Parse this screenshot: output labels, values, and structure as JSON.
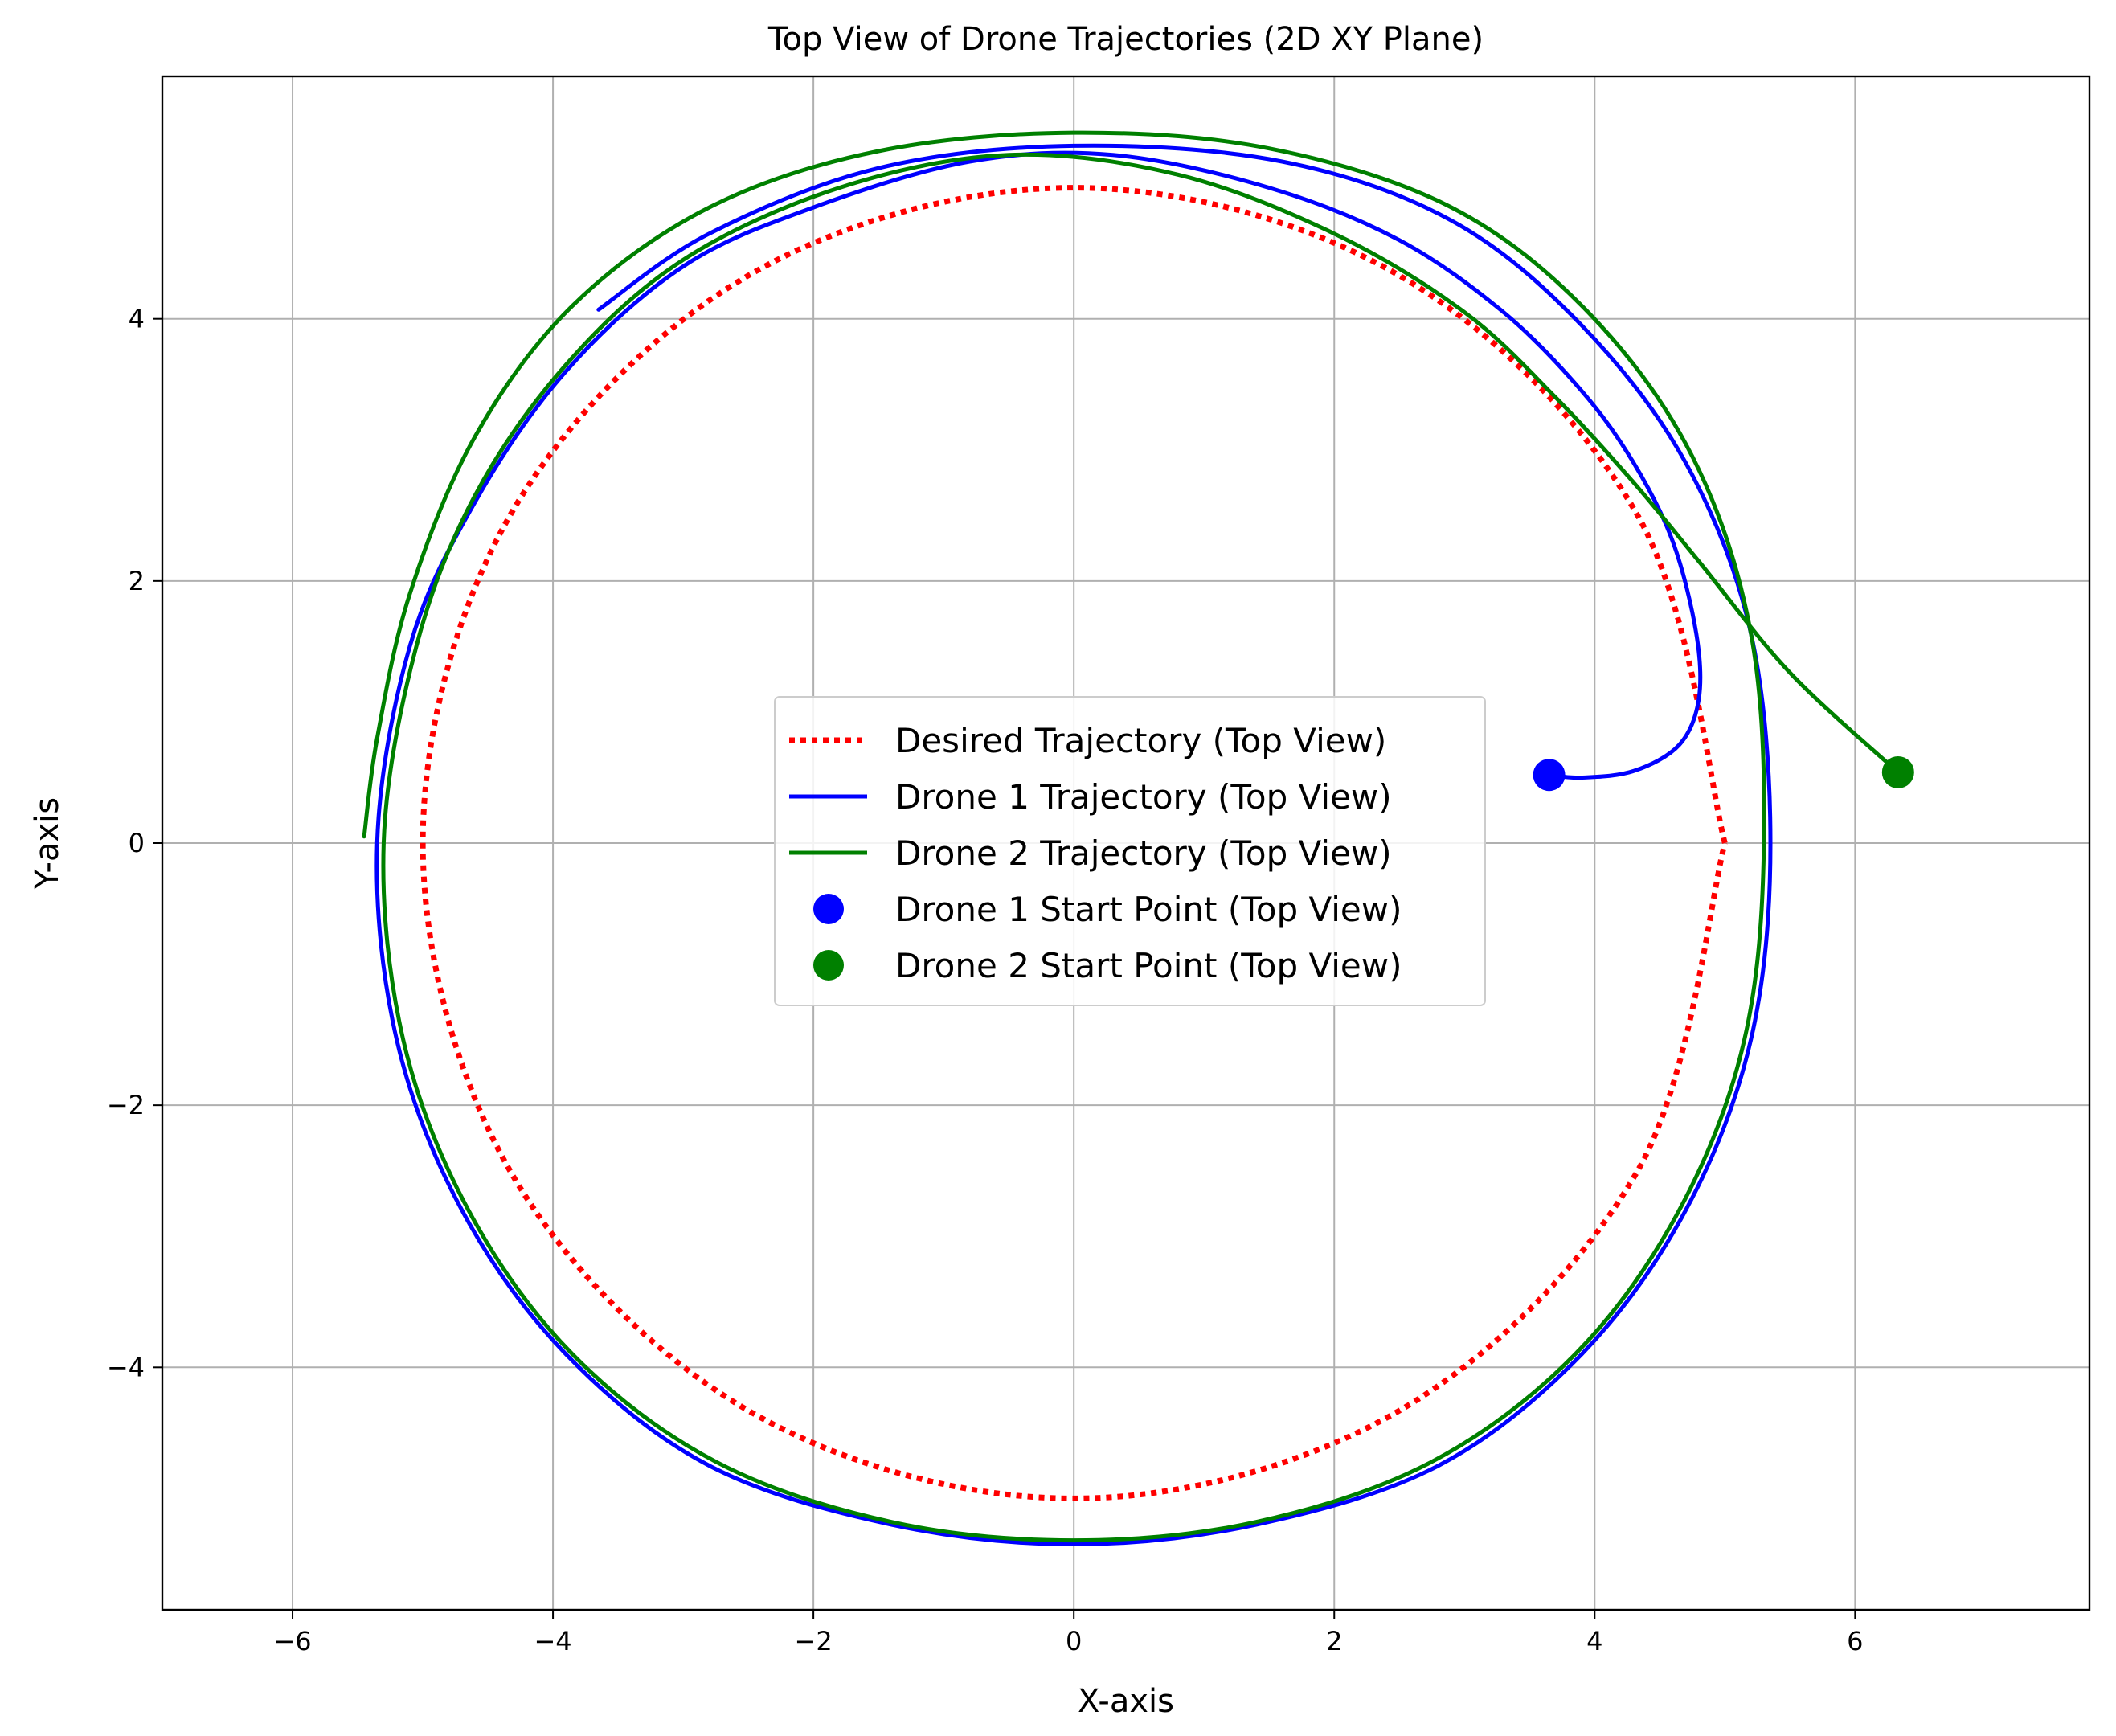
{
  "chart_data": {
    "type": "line",
    "title": "Top View of Drone Trajectories (2D XY Plane)",
    "xlabel": "X-axis",
    "ylabel": "Y-axis",
    "xlim": [
      -7,
      7.8
    ],
    "ylim": [
      -5.85,
      5.85
    ],
    "xticks": [
      -6,
      -4,
      -2,
      0,
      2,
      4,
      6
    ],
    "yticks": [
      -4,
      -2,
      0,
      2,
      4
    ],
    "xtick_labels": [
      "−6",
      "−4",
      "−2",
      "0",
      "2",
      "4",
      "6"
    ],
    "ytick_labels": [
      "−4",
      "−2",
      "0",
      "2",
      "4"
    ],
    "grid": true,
    "legend_position": "center",
    "series": [
      {
        "name": "Desired Trajectory (Top View)",
        "style": "dotted",
        "color": "#ff0000",
        "points": [
          [
            5.0,
            0.0
          ],
          [
            4.33,
            2.5
          ],
          [
            2.5,
            4.33
          ],
          [
            0.0,
            5.0
          ],
          [
            -2.5,
            4.33
          ],
          [
            -4.33,
            2.5
          ],
          [
            -5.0,
            0.0
          ],
          [
            -4.33,
            -2.5
          ],
          [
            -2.5,
            -4.33
          ],
          [
            0.0,
            -5.0
          ],
          [
            2.5,
            -4.33
          ],
          [
            4.33,
            -2.5
          ],
          [
            5.0,
            0.0
          ]
        ]
      },
      {
        "name": "Drone 1 Trajectory (Top View)",
        "style": "solid",
        "color": "#0000ff",
        "points": [
          [
            3.65,
            0.52
          ],
          [
            3.9,
            0.5
          ],
          [
            4.3,
            0.55
          ],
          [
            4.65,
            0.75
          ],
          [
            4.8,
            1.1
          ],
          [
            4.78,
            1.6
          ],
          [
            4.6,
            2.3
          ],
          [
            4.3,
            2.9
          ],
          [
            3.9,
            3.45
          ],
          [
            3.3,
            4.05
          ],
          [
            2.5,
            4.6
          ],
          [
            1.5,
            5.0
          ],
          [
            0.3,
            5.25
          ],
          [
            -0.8,
            5.2
          ],
          [
            -2.0,
            4.85
          ],
          [
            -3.0,
            4.4
          ],
          [
            -3.9,
            3.6
          ],
          [
            -4.6,
            2.6
          ],
          [
            -5.1,
            1.5
          ],
          [
            -5.35,
            0.0
          ],
          [
            -5.2,
            -1.5
          ],
          [
            -4.7,
            -2.8
          ],
          [
            -3.9,
            -3.9
          ],
          [
            -2.8,
            -4.75
          ],
          [
            -1.4,
            -5.2
          ],
          [
            0.0,
            -5.35
          ],
          [
            1.4,
            -5.2
          ],
          [
            2.8,
            -4.75
          ],
          [
            3.9,
            -3.9
          ],
          [
            4.7,
            -2.8
          ],
          [
            5.2,
            -1.5
          ],
          [
            5.35,
            0.0
          ],
          [
            5.2,
            1.6
          ],
          [
            4.7,
            2.9
          ],
          [
            3.9,
            3.95
          ],
          [
            2.9,
            4.75
          ],
          [
            1.6,
            5.2
          ],
          [
            0.0,
            5.32
          ],
          [
            -1.5,
            5.15
          ],
          [
            -2.8,
            4.65
          ],
          [
            -3.65,
            4.07
          ]
        ]
      },
      {
        "name": "Drone 2  Trajectory (Top View)",
        "style": "solid",
        "color": "#008000",
        "points": [
          [
            6.33,
            0.54
          ],
          [
            5.5,
            1.3
          ],
          [
            4.8,
            2.15
          ],
          [
            4.3,
            2.75
          ],
          [
            3.7,
            3.4
          ],
          [
            3.0,
            4.05
          ],
          [
            2.0,
            4.65
          ],
          [
            0.8,
            5.1
          ],
          [
            -0.5,
            5.25
          ],
          [
            -1.8,
            5.0
          ],
          [
            -3.0,
            4.45
          ],
          [
            -3.9,
            3.65
          ],
          [
            -4.6,
            2.65
          ],
          [
            -5.05,
            1.5
          ],
          [
            -5.3,
            0.0
          ],
          [
            -5.15,
            -1.5
          ],
          [
            -4.65,
            -2.8
          ],
          [
            -3.85,
            -3.9
          ],
          [
            -2.75,
            -4.72
          ],
          [
            -1.4,
            -5.18
          ],
          [
            0.0,
            -5.32
          ],
          [
            1.4,
            -5.18
          ],
          [
            2.75,
            -4.72
          ],
          [
            3.85,
            -3.9
          ],
          [
            4.65,
            -2.8
          ],
          [
            5.15,
            -1.5
          ],
          [
            5.3,
            0.0
          ],
          [
            5.2,
            1.6
          ],
          [
            4.75,
            2.95
          ],
          [
            3.95,
            4.05
          ],
          [
            2.9,
            4.85
          ],
          [
            1.5,
            5.3
          ],
          [
            0.0,
            5.42
          ],
          [
            -1.5,
            5.28
          ],
          [
            -2.8,
            4.85
          ],
          [
            -3.85,
            4.1
          ],
          [
            -4.6,
            3.1
          ],
          [
            -5.1,
            1.9
          ],
          [
            -5.35,
            0.8
          ],
          [
            -5.45,
            0.05
          ]
        ]
      },
      {
        "name": "Drone 1 Start Point (Top View)",
        "type": "scatter",
        "color": "#0000ff",
        "points": [
          [
            3.65,
            0.52
          ]
        ]
      },
      {
        "name": "Drone 2 Start Point (Top View)",
        "type": "scatter",
        "color": "#008000",
        "points": [
          [
            6.33,
            0.54
          ]
        ]
      }
    ]
  }
}
